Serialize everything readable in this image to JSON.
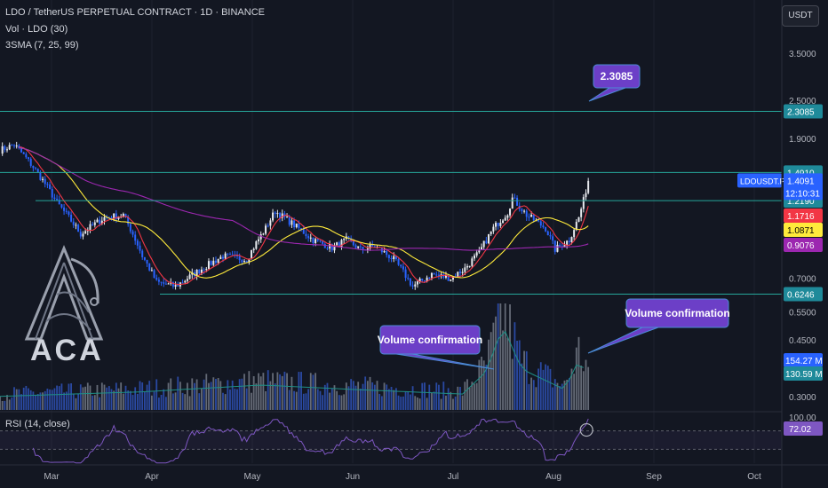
{
  "header": {
    "title": "LDO / TetherUS PERPETUAL CONTRACT · 1D · BINANCE",
    "vol_label": "Vol · LDO (30)",
    "sma_label": "3SMA (7, 25, 99)",
    "rsi_label": "RSI (14, close)",
    "currency": "USDT"
  },
  "logo": {
    "text": "ACA"
  },
  "colors": {
    "background": "#131722",
    "candle_up": "#e7e9ee",
    "candle_down": "#2962ff",
    "sma_fast": "#f23645",
    "sma_mid": "#ffeb3b",
    "sma_slow": "#9c27b0",
    "level_line": "#26a69a",
    "callout": "#6c3fc7",
    "rsi": "#7e57c2"
  },
  "chart_data": {
    "type": "candlestick",
    "symbol": "LDOUSDT.P",
    "x_ticks": [
      "Mar",
      "Apr",
      "May",
      "Jun",
      "Jul",
      "Aug",
      "Sep",
      "Oct"
    ],
    "y_scale": "log",
    "y_ticks": [
      "3.5000",
      "2.5000",
      "1.9000",
      "0.7000",
      "0.5500",
      "0.4500",
      "0.3000"
    ],
    "levels": [
      {
        "label": "2.3085",
        "value": 2.3085
      },
      {
        "label": "1.4910",
        "value": 1.491
      },
      {
        "label": "1.2190",
        "value": 1.219
      },
      {
        "label": "0.6246",
        "value": 0.6246
      }
    ],
    "price_badge": {
      "symbol": "LDOUSDT.P",
      "price": "1.4091",
      "countdown": "12:10:31"
    },
    "sma_values": [
      {
        "name": "SMA 7",
        "label": "1.1716"
      },
      {
        "name": "SMA 25",
        "label": "1.0871"
      },
      {
        "name": "SMA 99",
        "label": "0.9076"
      }
    ],
    "volume_labels": [
      "154.27 M",
      "130.59 M"
    ],
    "rsi": {
      "label": "100.00",
      "value_label": "72.02",
      "value": 72.02
    },
    "callouts": [
      {
        "text": "2.3085"
      },
      {
        "text": "Volume confirmation"
      },
      {
        "text": "Volume confirmation"
      }
    ],
    "anchors": [
      {
        "d": 0,
        "p": 1.75
      },
      {
        "d": 6,
        "p": 1.82
      },
      {
        "d": 14,
        "p": 1.55
      },
      {
        "d": 24,
        "p": 1.2
      },
      {
        "d": 34,
        "p": 0.96
      },
      {
        "d": 44,
        "p": 1.08
      },
      {
        "d": 52,
        "p": 1.1
      },
      {
        "d": 60,
        "p": 0.82
      },
      {
        "d": 66,
        "p": 0.68
      },
      {
        "d": 74,
        "p": 0.66
      },
      {
        "d": 84,
        "p": 0.74
      },
      {
        "d": 94,
        "p": 0.82
      },
      {
        "d": 104,
        "p": 0.8
      },
      {
        "d": 112,
        "p": 1.0
      },
      {
        "d": 116,
        "p": 1.13
      },
      {
        "d": 122,
        "p": 1.05
      },
      {
        "d": 132,
        "p": 0.92
      },
      {
        "d": 140,
        "p": 0.87
      },
      {
        "d": 146,
        "p": 0.92
      },
      {
        "d": 152,
        "p": 0.86
      },
      {
        "d": 158,
        "p": 0.88
      },
      {
        "d": 166,
        "p": 0.8
      },
      {
        "d": 174,
        "p": 0.66
      },
      {
        "d": 182,
        "p": 0.72
      },
      {
        "d": 190,
        "p": 0.7
      },
      {
        "d": 196,
        "p": 0.75
      },
      {
        "d": 202,
        "p": 0.84
      },
      {
        "d": 208,
        "p": 1.0
      },
      {
        "d": 214,
        "p": 1.12
      },
      {
        "d": 216,
        "p": 1.24
      },
      {
        "d": 222,
        "p": 1.1
      },
      {
        "d": 230,
        "p": 1.0
      },
      {
        "d": 234,
        "p": 0.86
      },
      {
        "d": 240,
        "p": 0.92
      },
      {
        "d": 244,
        "p": 1.08
      },
      {
        "d": 246,
        "p": 1.22
      },
      {
        "d": 248,
        "p": 1.41
      }
    ],
    "volume_anchors": [
      {
        "d": 0,
        "v": 60
      },
      {
        "d": 60,
        "v": 80
      },
      {
        "d": 110,
        "v": 110
      },
      {
        "d": 150,
        "v": 90
      },
      {
        "d": 195,
        "v": 70
      },
      {
        "d": 205,
        "v": 170
      },
      {
        "d": 212,
        "v": 370
      },
      {
        "d": 220,
        "v": 180
      },
      {
        "d": 238,
        "v": 90
      },
      {
        "d": 244,
        "v": 220
      },
      {
        "d": 248,
        "v": 154
      }
    ]
  }
}
